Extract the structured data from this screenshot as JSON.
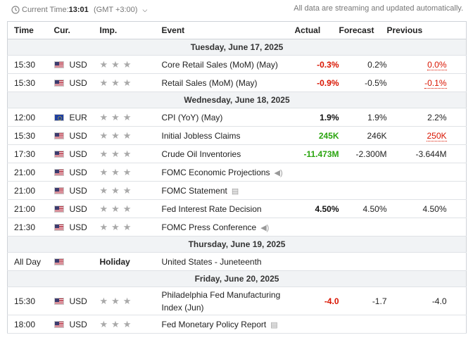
{
  "header": {
    "current_time_label": "Current Time:",
    "current_time": "13:01",
    "timezone": "(GMT +3:00)",
    "stream_note": "All data are streaming and updated automatically."
  },
  "columns": [
    "Time",
    "Cur.",
    "Imp.",
    "Event",
    "Actual",
    "Forecast",
    "Previous"
  ],
  "colors": {
    "negative": "#d91400",
    "positive": "#2aa50f",
    "day_header_bg": "#f1f3f5"
  },
  "days": [
    {
      "label": "Tuesday, June 17, 2025",
      "events": [
        {
          "time": "15:30",
          "flag": "us-flag-icon",
          "currency": "USD",
          "importance_stars": 3,
          "event": "Core Retail Sales (MoM) (May)",
          "actual": "-0.3%",
          "actual_style": "negative",
          "forecast": "0.2%",
          "previous": "0.0%",
          "previous_style": "negative-dotted"
        },
        {
          "time": "15:30",
          "flag": "us-flag-icon",
          "currency": "USD",
          "importance_stars": 3,
          "event": "Retail Sales (MoM) (May)",
          "actual": "-0.9%",
          "actual_style": "negative",
          "forecast": "-0.5%",
          "previous": "-0.1%",
          "previous_style": "negative-dotted"
        }
      ]
    },
    {
      "label": "Wednesday, June 18, 2025",
      "events": [
        {
          "time": "12:00",
          "flag": "eu-flag-icon",
          "currency": "EUR",
          "importance_stars": 3,
          "event": "CPI (YoY) (May)",
          "actual": "1.9%",
          "actual_style": "bold",
          "forecast": "1.9%",
          "previous": "2.2%"
        },
        {
          "time": "15:30",
          "flag": "us-flag-icon",
          "currency": "USD",
          "importance_stars": 3,
          "event": "Initial Jobless Claims",
          "actual": "245K",
          "actual_style": "positive",
          "forecast": "246K",
          "previous": "250K",
          "previous_style": "negative-dotted"
        },
        {
          "time": "17:30",
          "flag": "us-flag-icon",
          "currency": "USD",
          "importance_stars": 3,
          "event": "Crude Oil Inventories",
          "actual": "-11.473M",
          "actual_style": "positive",
          "forecast": "-2.300M",
          "previous": "-3.644M"
        },
        {
          "time": "21:00",
          "flag": "us-flag-icon",
          "currency": "USD",
          "importance_stars": 3,
          "event": "FOMC Economic Projections",
          "event_icon": "speaker-icon",
          "actual": "",
          "forecast": "",
          "previous": ""
        },
        {
          "time": "21:00",
          "flag": "us-flag-icon",
          "currency": "USD",
          "importance_stars": 3,
          "event": "FOMC Statement",
          "event_icon": "document-icon",
          "actual": "",
          "forecast": "",
          "previous": ""
        },
        {
          "time": "21:00",
          "flag": "us-flag-icon",
          "currency": "USD",
          "importance_stars": 3,
          "event": "Fed Interest Rate Decision",
          "actual": "4.50%",
          "actual_style": "bold",
          "forecast": "4.50%",
          "previous": "4.50%"
        },
        {
          "time": "21:30",
          "flag": "us-flag-icon",
          "currency": "USD",
          "importance_stars": 3,
          "event": "FOMC Press Conference",
          "event_icon": "speaker-icon",
          "actual": "",
          "forecast": "",
          "previous": ""
        }
      ]
    },
    {
      "label": "Thursday, June 19, 2025",
      "events": [
        {
          "time": "All Day",
          "flag": "us-flag-icon",
          "currency": "",
          "holiday": "Holiday",
          "event": "United States - Juneteenth",
          "actual": "",
          "forecast": "",
          "previous": ""
        }
      ]
    },
    {
      "label": "Friday, June 20, 2025",
      "events": [
        {
          "time": "15:30",
          "flag": "us-flag-icon",
          "currency": "USD",
          "importance_stars": 3,
          "event": "Philadelphia Fed Manufacturing Index (Jun)",
          "tall": true,
          "actual": "-4.0",
          "actual_style": "negative",
          "forecast": "-1.7",
          "previous": "-4.0"
        },
        {
          "time": "18:00",
          "flag": "us-flag-icon",
          "currency": "USD",
          "importance_stars": 3,
          "event": "Fed Monetary Policy Report",
          "event_icon": "document-icon",
          "actual": "",
          "forecast": "",
          "previous": ""
        }
      ]
    }
  ]
}
